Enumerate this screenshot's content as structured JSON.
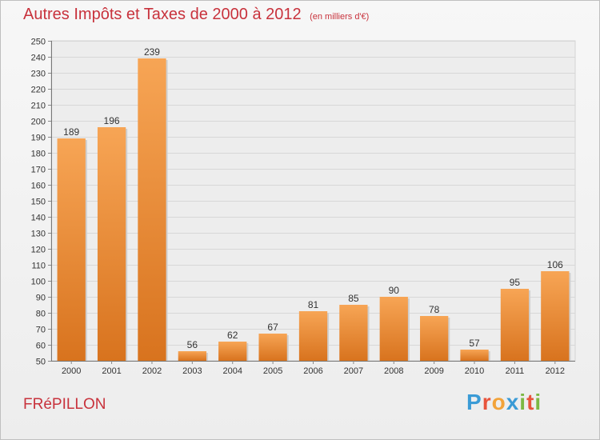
{
  "header": {
    "title": "Autres Impôts et Taxes de 2000 à 2012",
    "subtitle": "(en milliers d'€)"
  },
  "footer": {
    "commune": "FRéPILLON",
    "brand_letters": [
      "P",
      "r",
      "o",
      "x",
      "i",
      "t",
      "i"
    ],
    "brand_colors": [
      "#3a9bd6",
      "#e8543c",
      "#f2a33a",
      "#3a9bd6",
      "#7cb843",
      "#e8543c",
      "#7cb843"
    ]
  },
  "colors": {
    "bar_top": "#f7a555",
    "bar_bottom": "#d8731e",
    "title": "#c8323c"
  },
  "chart_data": {
    "type": "bar",
    "title": "Autres Impôts et Taxes de 2000 à 2012",
    "subtitle": "(en milliers d'€)",
    "categories": [
      "2000",
      "2001",
      "2002",
      "2003",
      "2004",
      "2005",
      "2006",
      "2007",
      "2008",
      "2009",
      "2010",
      "2011",
      "2012"
    ],
    "values": [
      189,
      196,
      239,
      56,
      62,
      67,
      81,
      85,
      90,
      78,
      57,
      95,
      106
    ],
    "ylim": [
      50,
      250
    ],
    "ytick_step": 10,
    "grid": true
  }
}
